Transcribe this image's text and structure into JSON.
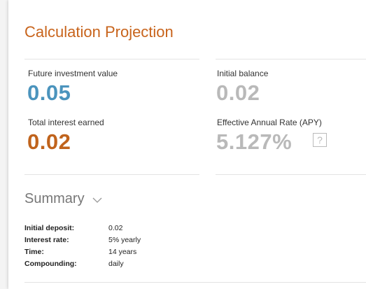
{
  "header": {
    "title": "Calculation Projection"
  },
  "results": [
    {
      "label": "Future investment value",
      "value": "0.05"
    },
    {
      "label": "Total interest earned",
      "value": "0.02"
    },
    {
      "label": "Initial balance",
      "value": "0.02"
    },
    {
      "label": "Effective Annual Rate (APY)",
      "value": "5.127%",
      "help_icon": "?"
    }
  ],
  "summary": {
    "title": "Summary",
    "rows": [
      [
        "Initial deposit:",
        "0.02"
      ],
      [
        "Interest rate:",
        "5% yearly"
      ],
      [
        "Time:",
        "14 years"
      ],
      [
        "Compounding:",
        "daily"
      ]
    ]
  }
}
